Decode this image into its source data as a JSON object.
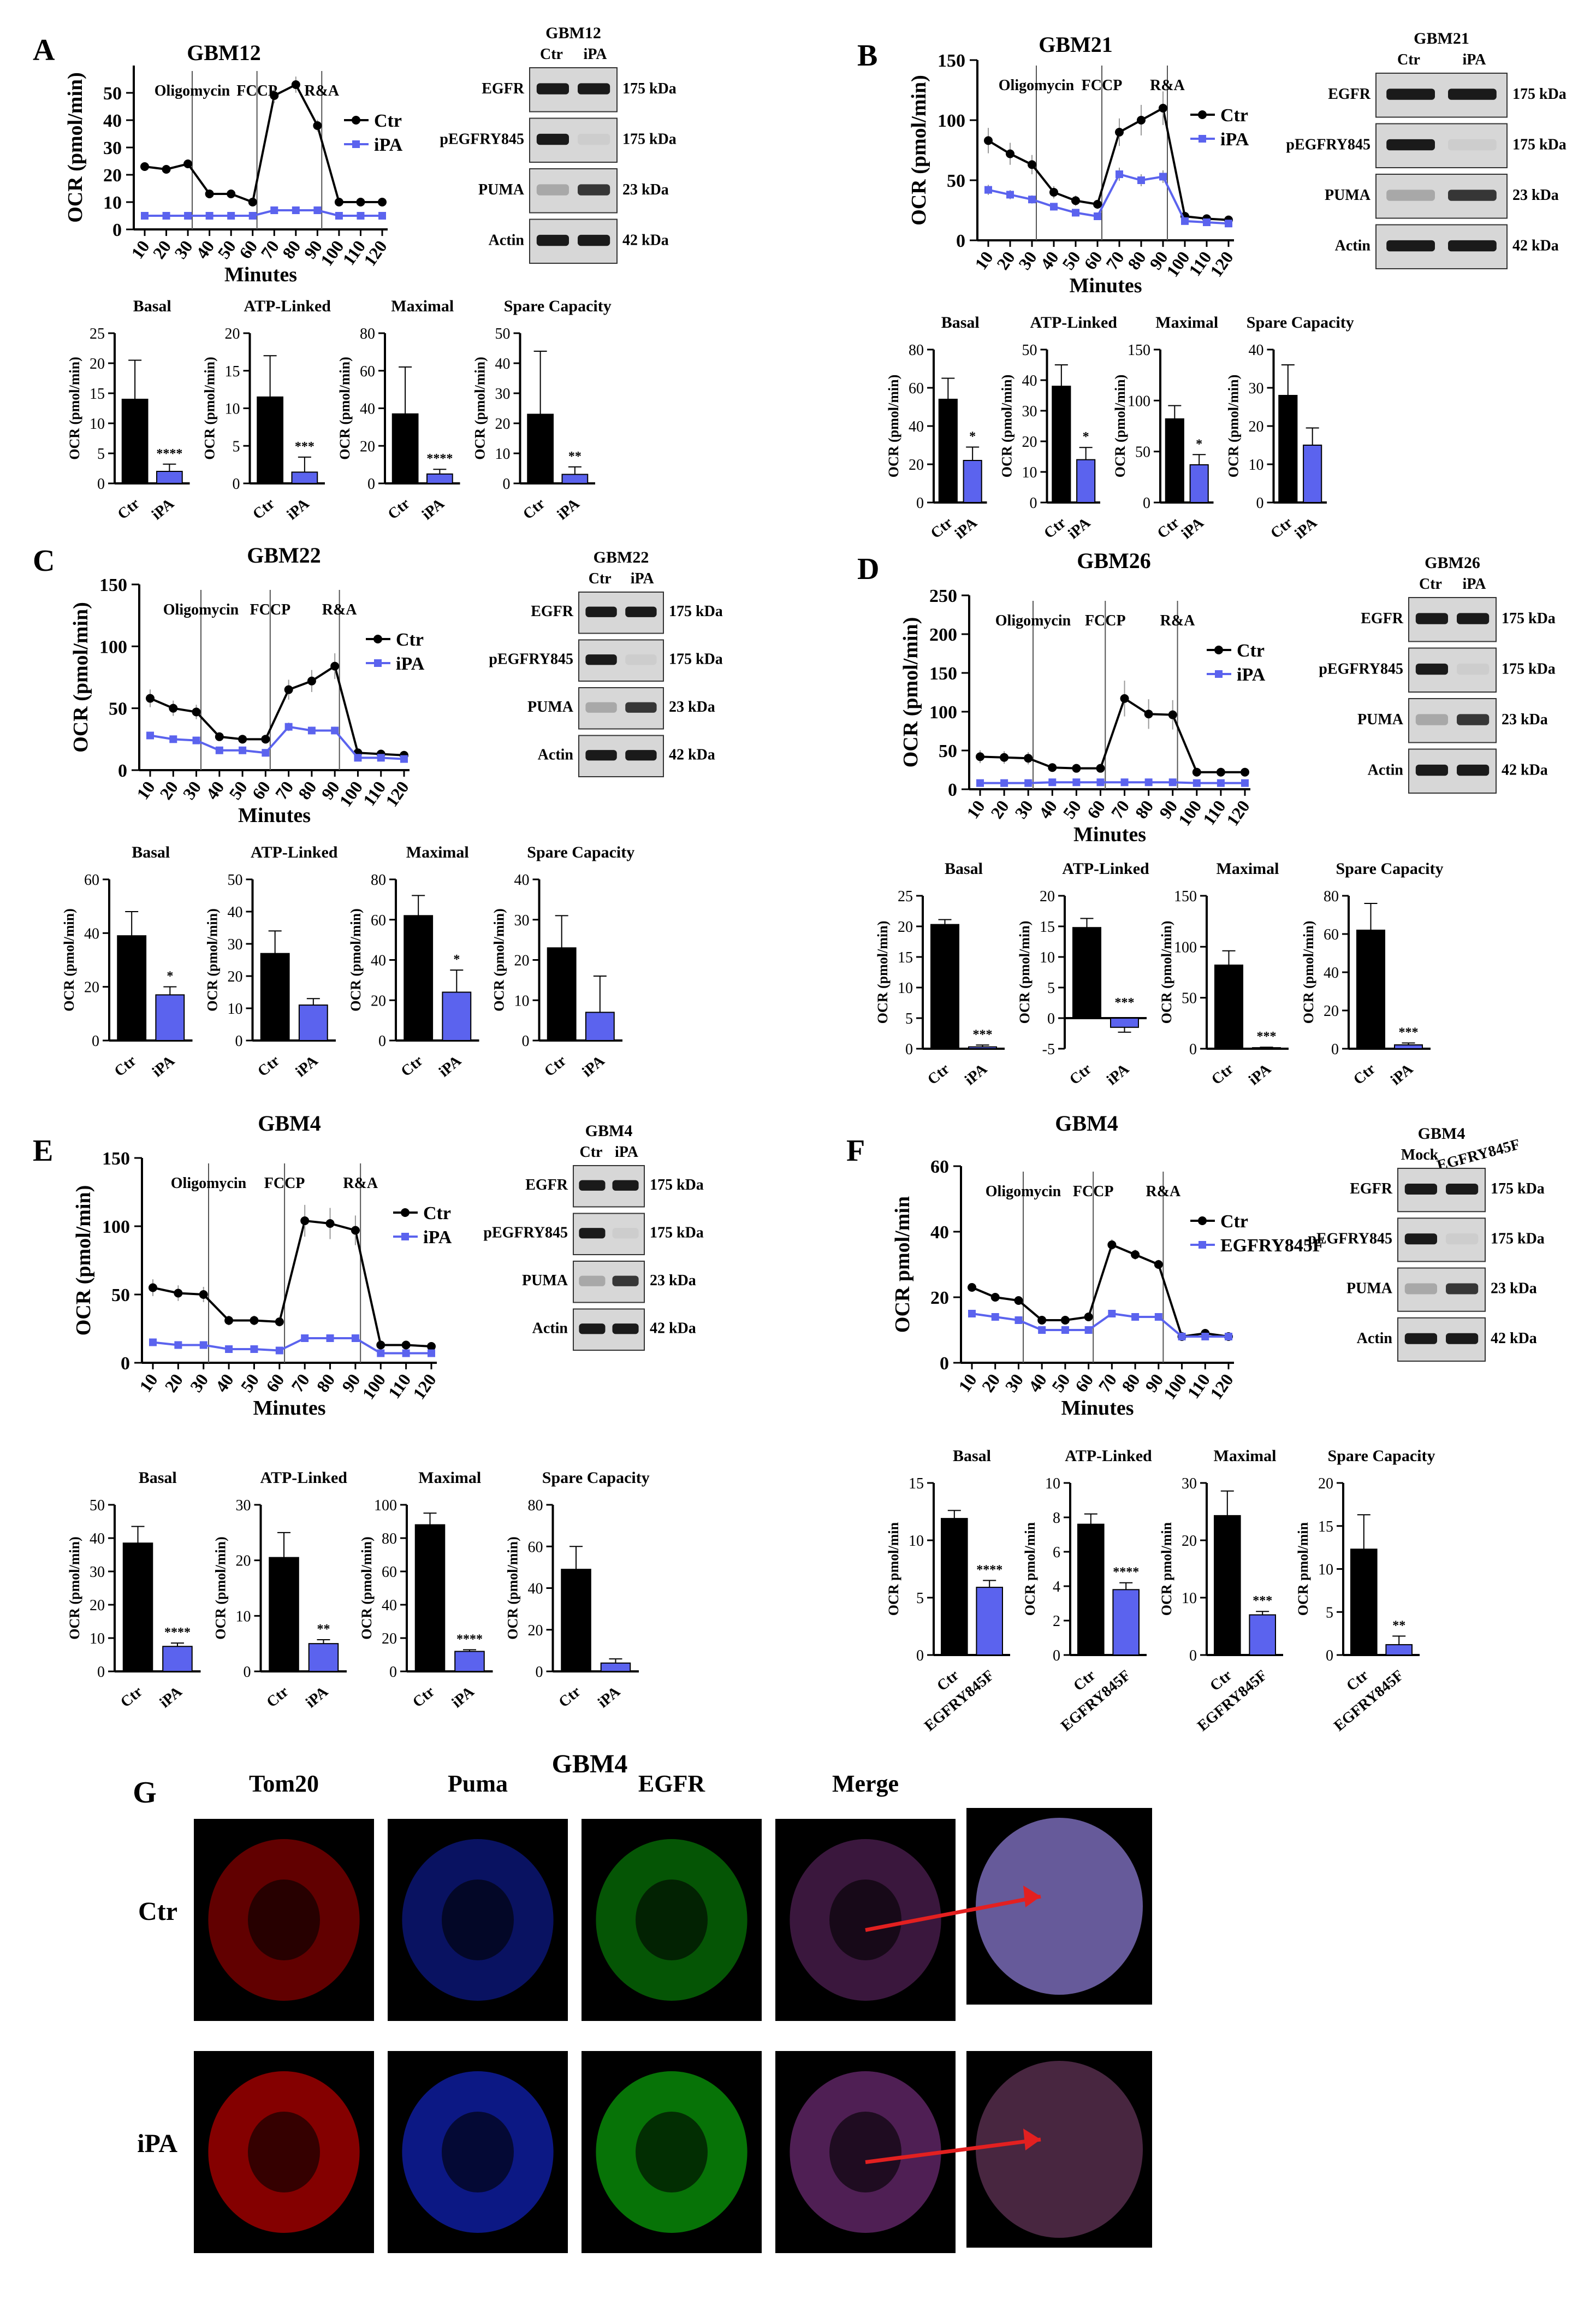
{
  "colors": {
    "ctr": "#000000",
    "treat": "#5b63ee",
    "treat_bar": "#5b63ee",
    "inj": "#555555",
    "blot_bg": "#d7d7d7",
    "band": "#1a1a1a",
    "arrow": "#e32020"
  },
  "figure": {
    "x_label": "Minutes",
    "y_label": "OCR (pmol/min)",
    "bar_y_label": "OCR (pmol/min)",
    "metrics": [
      "Basal",
      "ATP-Linked",
      "Maximal",
      "Spare Capacity"
    ],
    "injections": [
      {
        "label": "Oligomycin",
        "x": 30
      },
      {
        "label": "FCCP",
        "x": 60
      },
      {
        "label": "R&A",
        "x": 90
      }
    ],
    "blot_rows": [
      {
        "label": "EGFR",
        "kda": "175 kDa"
      },
      {
        "label": "pEGFRY845",
        "kda": "175 kDa"
      },
      {
        "label": "PUMA",
        "kda": "23 kDa"
      },
      {
        "label": "Actin",
        "kda": "42 kDa"
      }
    ]
  },
  "panels": [
    {
      "letter": "A",
      "title": "GBM12",
      "blot_title": "GBM12",
      "lanes": [
        "Ctr",
        "iPA"
      ],
      "legend": [
        "Ctr",
        "iPA"
      ],
      "bars": [
        {
          "title": "Basal",
          "ylim": [
            0,
            25
          ],
          "ticks": [
            0,
            5,
            10,
            15,
            20,
            25
          ],
          "values": [
            14,
            2
          ],
          "err": [
            6.5,
            1.2
          ],
          "sig": "****"
        },
        {
          "title": "ATP-Linked",
          "ylim": [
            0,
            20
          ],
          "ticks": [
            0,
            5,
            10,
            15,
            20
          ],
          "values": [
            11.5,
            1.5
          ],
          "err": [
            5.5,
            2
          ],
          "sig": "***"
        },
        {
          "title": "Maximal",
          "ylim": [
            0,
            80
          ],
          "ticks": [
            0,
            20,
            40,
            60,
            80
          ],
          "values": [
            37,
            5
          ],
          "err": [
            25,
            2.5
          ],
          "sig": "****"
        },
        {
          "title": "Spare Capacity",
          "ylim": [
            0,
            50
          ],
          "ticks": [
            0,
            10,
            20,
            30,
            40,
            50
          ],
          "values": [
            23,
            3
          ],
          "err": [
            21,
            2.5
          ],
          "sig": "**"
        }
      ]
    },
    {
      "letter": "B",
      "title": "GBM21",
      "blot_title": "GBM21",
      "lanes": [
        "Ctr",
        "iPA"
      ],
      "legend": [
        "Ctr",
        "iPA"
      ],
      "bars": [
        {
          "title": "Basal",
          "ylim": [
            0,
            80
          ],
          "ticks": [
            0,
            20,
            40,
            60,
            80
          ],
          "values": [
            54,
            22
          ],
          "err": [
            11,
            7
          ],
          "sig": "*"
        },
        {
          "title": "ATP-Linked",
          "ylim": [
            0,
            50
          ],
          "ticks": [
            0,
            10,
            20,
            30,
            40,
            50
          ],
          "values": [
            38,
            14
          ],
          "err": [
            7,
            4
          ],
          "sig": "*"
        },
        {
          "title": "Maximal",
          "ylim": [
            0,
            150
          ],
          "ticks": [
            0,
            50,
            100,
            150
          ],
          "values": [
            82,
            37
          ],
          "err": [
            13,
            10
          ],
          "sig": "*"
        },
        {
          "title": "Spare Capacity",
          "ylim": [
            0,
            40
          ],
          "ticks": [
            0,
            10,
            20,
            30,
            40
          ],
          "values": [
            28,
            15
          ],
          "err": [
            8,
            4.5
          ],
          "sig": ""
        }
      ]
    },
    {
      "letter": "C",
      "title": "GBM22",
      "blot_title": "GBM22",
      "lanes": [
        "Ctr",
        "iPA"
      ],
      "legend": [
        "Ctr",
        "iPA"
      ],
      "bars": [
        {
          "title": "Basal",
          "ylim": [
            0,
            60
          ],
          "ticks": [
            0,
            20,
            40,
            60
          ],
          "values": [
            39,
            17
          ],
          "err": [
            9,
            3
          ],
          "sig": "*"
        },
        {
          "title": "ATP-Linked",
          "ylim": [
            0,
            50
          ],
          "ticks": [
            0,
            10,
            20,
            30,
            40,
            50
          ],
          "values": [
            27,
            11
          ],
          "err": [
            7,
            2
          ],
          "sig": ""
        },
        {
          "title": "Maximal",
          "ylim": [
            0,
            80
          ],
          "ticks": [
            0,
            20,
            40,
            60,
            80
          ],
          "values": [
            62,
            24
          ],
          "err": [
            10,
            11
          ],
          "sig": "*"
        },
        {
          "title": "Spare Capacity",
          "ylim": [
            0,
            40
          ],
          "ticks": [
            0,
            10,
            20,
            30,
            40
          ],
          "values": [
            23,
            7
          ],
          "err": [
            8,
            9
          ],
          "sig": ""
        }
      ]
    },
    {
      "letter": "D",
      "title": "GBM26",
      "blot_title": "GBM26",
      "lanes": [
        "Ctr",
        "iPA"
      ],
      "legend": [
        "Ctr",
        "iPA"
      ],
      "bars": [
        {
          "title": "Basal",
          "ylim": [
            0,
            25
          ],
          "ticks": [
            0,
            5,
            10,
            15,
            20,
            25
          ],
          "values": [
            20.3,
            0.3
          ],
          "err": [
            0.8,
            0.3
          ],
          "sig": "***"
        },
        {
          "title": "ATP-Linked",
          "ylim": [
            -5,
            20
          ],
          "ticks": [
            -5,
            0,
            5,
            10,
            15,
            20
          ],
          "values": [
            14.8,
            -1.5
          ],
          "err": [
            1.5,
            0.8
          ],
          "sig": "***"
        },
        {
          "title": "Maximal",
          "ylim": [
            0,
            150
          ],
          "ticks": [
            0,
            50,
            100,
            150
          ],
          "values": [
            82,
            1
          ],
          "err": [
            14,
            0.5
          ],
          "sig": "***"
        },
        {
          "title": "Spare Capacity",
          "ylim": [
            0,
            80
          ],
          "ticks": [
            0,
            20,
            40,
            60,
            80
          ],
          "values": [
            62,
            2
          ],
          "err": [
            14,
            1
          ],
          "sig": "***"
        }
      ]
    },
    {
      "letter": "E",
      "title": "GBM4",
      "blot_title": "GBM4",
      "lanes": [
        "Ctr",
        "iPA"
      ],
      "legend": [
        "Ctr",
        "iPA"
      ],
      "bars": [
        {
          "title": "Basal",
          "ylim": [
            0,
            50
          ],
          "ticks": [
            0,
            10,
            20,
            30,
            40,
            50
          ],
          "values": [
            38.5,
            7.5
          ],
          "err": [
            5,
            1
          ],
          "sig": "****"
        },
        {
          "title": "ATP-Linked",
          "ylim": [
            0,
            30
          ],
          "ticks": [
            0,
            10,
            20,
            30
          ],
          "values": [
            20.5,
            5
          ],
          "err": [
            4.5,
            0.7
          ],
          "sig": "**"
        },
        {
          "title": "Maximal",
          "ylim": [
            0,
            100
          ],
          "ticks": [
            0,
            20,
            40,
            60,
            80,
            100
          ],
          "values": [
            88,
            12
          ],
          "err": [
            7,
            1
          ],
          "sig": "****"
        },
        {
          "title": "Spare Capacity",
          "ylim": [
            0,
            80
          ],
          "ticks": [
            0,
            20,
            40,
            60,
            80
          ],
          "values": [
            49,
            4
          ],
          "err": [
            11,
            2
          ],
          "sig": ""
        }
      ]
    },
    {
      "letter": "F",
      "title": "GBM4",
      "blot_title": "GBM4",
      "lanes": [
        "Mock",
        "EGFRY845F"
      ],
      "legend": [
        "Ctr",
        "EGFRY845F"
      ],
      "y_label": "OCR pmol/min",
      "bars": [
        {
          "title": "Basal",
          "ylim": [
            0,
            15
          ],
          "ticks": [
            0,
            5,
            10,
            15
          ],
          "values": [
            11.9,
            5.9
          ],
          "err": [
            0.7,
            0.6
          ],
          "sig": "****"
        },
        {
          "title": "ATP-Linked",
          "ylim": [
            0,
            10
          ],
          "ticks": [
            0,
            2,
            4,
            6,
            8,
            10
          ],
          "values": [
            7.6,
            3.8
          ],
          "err": [
            0.6,
            0.4
          ],
          "sig": "****"
        },
        {
          "title": "Maximal",
          "ylim": [
            0,
            30
          ],
          "ticks": [
            0,
            10,
            20,
            30
          ],
          "values": [
            24.3,
            7
          ],
          "err": [
            4.3,
            0.6
          ],
          "sig": "***"
        },
        {
          "title": "Spare Capacity",
          "ylim": [
            0,
            20
          ],
          "ticks": [
            0,
            5,
            10,
            15,
            20
          ],
          "values": [
            12.3,
            1.2
          ],
          "err": [
            4,
            1
          ],
          "sig": "**"
        }
      ]
    }
  ],
  "panel_g": {
    "letter": "G",
    "title": "GBM4",
    "columns": [
      "Tom20",
      "Puma",
      "EGFR",
      "Merge"
    ],
    "rows": [
      "Ctr",
      "iPA"
    ]
  },
  "chart_data": [
    {
      "type": "line",
      "title": "GBM12",
      "xlabel": "Minutes",
      "ylabel": "OCR (pmol/min)",
      "ylim": [
        0,
        60
      ],
      "x": [
        10,
        20,
        30,
        40,
        50,
        60,
        70,
        80,
        90,
        100,
        110,
        120
      ],
      "series": [
        {
          "name": "Ctr",
          "values": [
            23,
            22,
            24,
            13,
            13,
            10,
            49,
            53,
            38,
            10,
            10,
            10
          ]
        },
        {
          "name": "iPA",
          "values": [
            5,
            5,
            5,
            5,
            5,
            5,
            7,
            7,
            7,
            5,
            5,
            5
          ]
        }
      ]
    },
    {
      "type": "line",
      "title": "GBM21",
      "xlabel": "Minutes",
      "ylabel": "OCR (pmol/min)",
      "ylim": [
        0,
        150
      ],
      "x": [
        10,
        20,
        30,
        40,
        50,
        60,
        70,
        80,
        90,
        100,
        110,
        120
      ],
      "series": [
        {
          "name": "Ctr",
          "values": [
            83,
            72,
            63,
            40,
            33,
            30,
            90,
            100,
            110,
            20,
            18,
            17
          ]
        },
        {
          "name": "iPA",
          "values": [
            42,
            38,
            34,
            28,
            23,
            20,
            55,
            50,
            53,
            16,
            15,
            14
          ]
        }
      ]
    },
    {
      "type": "line",
      "title": "GBM22",
      "xlabel": "Minutes",
      "ylabel": "OCR (pmol/min)",
      "ylim": [
        0,
        150
      ],
      "x": [
        10,
        20,
        30,
        40,
        50,
        60,
        70,
        80,
        90,
        100,
        110,
        120
      ],
      "series": [
        {
          "name": "Ctr",
          "values": [
            58,
            50,
            47,
            27,
            25,
            25,
            65,
            72,
            84,
            14,
            13,
            12
          ]
        },
        {
          "name": "iPA",
          "values": [
            28,
            25,
            24,
            16,
            16,
            14,
            35,
            32,
            32,
            10,
            10,
            9
          ]
        }
      ]
    },
    {
      "type": "line",
      "title": "GBM26",
      "xlabel": "Minutes",
      "ylabel": "OCR (pmol/min)",
      "ylim": [
        0,
        250
      ],
      "x": [
        10,
        20,
        30,
        40,
        50,
        60,
        70,
        80,
        90,
        100,
        110,
        120
      ],
      "series": [
        {
          "name": "Ctr",
          "values": [
            42,
            41,
            40,
            28,
            27,
            27,
            117,
            97,
            96,
            22,
            22,
            22
          ]
        },
        {
          "name": "iPA",
          "values": [
            8,
            8,
            8,
            9,
            9,
            9,
            9,
            9,
            9,
            8,
            8,
            8
          ]
        }
      ]
    },
    {
      "type": "line",
      "title": "GBM4",
      "xlabel": "Minutes",
      "ylabel": "OCR (pmol/min)",
      "ylim": [
        0,
        150
      ],
      "x": [
        10,
        20,
        30,
        40,
        50,
        60,
        70,
        80,
        90,
        100,
        110,
        120
      ],
      "series": [
        {
          "name": "Ctr",
          "values": [
            55,
            51,
            50,
            31,
            31,
            30,
            104,
            102,
            97,
            13,
            13,
            12
          ]
        },
        {
          "name": "iPA",
          "values": [
            15,
            13,
            13,
            10,
            10,
            9,
            18,
            18,
            18,
            7,
            7,
            7
          ]
        }
      ]
    },
    {
      "type": "line",
      "title": "GBM4",
      "xlabel": "Minutes",
      "ylabel": "OCR pmol/min",
      "ylim": [
        0,
        60
      ],
      "x": [
        10,
        20,
        30,
        40,
        50,
        60,
        70,
        80,
        90,
        100,
        110,
        120
      ],
      "series": [
        {
          "name": "Ctr",
          "values": [
            23,
            20,
            19,
            13,
            13,
            14,
            36,
            33,
            30,
            8,
            9,
            8
          ]
        },
        {
          "name": "EGFRY845F",
          "values": [
            15,
            14,
            13,
            10,
            10,
            10,
            15,
            14,
            14,
            8,
            8,
            8
          ]
        }
      ]
    }
  ]
}
